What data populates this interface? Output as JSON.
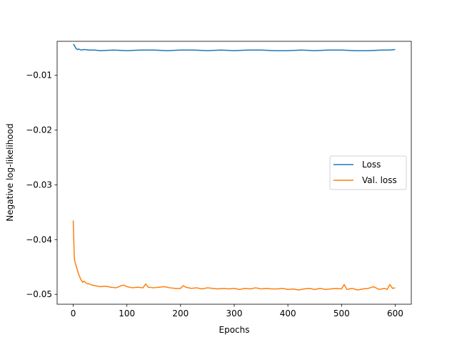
{
  "chart_data": {
    "type": "line",
    "title": "",
    "xlabel": "Epochs",
    "ylabel": "Negative log-likelihood",
    "xlim": [
      -30,
      630
    ],
    "ylim": [
      -0.0518,
      -0.0038
    ],
    "xticks": [
      0,
      100,
      200,
      300,
      400,
      500,
      600
    ],
    "xtick_labels": [
      "0",
      "100",
      "200",
      "300",
      "400",
      "500",
      "600"
    ],
    "yticks": [
      -0.01,
      -0.02,
      -0.03,
      -0.04,
      -0.05
    ],
    "ytick_labels": [
      "−0.01",
      "−0.02",
      "−0.03",
      "−0.04",
      "−0.05"
    ],
    "grid": false,
    "legend": {
      "position": "center-right"
    },
    "series": [
      {
        "name": "Loss",
        "color": "#1f77b4",
        "x": [
          0,
          2,
          4,
          6,
          8,
          10,
          15,
          20,
          30,
          40,
          50,
          75,
          100,
          125,
          150,
          175,
          200,
          225,
          250,
          275,
          300,
          325,
          350,
          375,
          400,
          425,
          450,
          475,
          500,
          525,
          550,
          575,
          590,
          600
        ],
        "y": [
          -0.0043,
          -0.0045,
          -0.0049,
          -0.0052,
          -0.0053,
          -0.0052,
          -0.0054,
          -0.0053,
          -0.0054,
          -0.0054,
          -0.0055,
          -0.0054,
          -0.0055,
          -0.0054,
          -0.0054,
          -0.0055,
          -0.0054,
          -0.0054,
          -0.0055,
          -0.0054,
          -0.0055,
          -0.0054,
          -0.0054,
          -0.0055,
          -0.0055,
          -0.0054,
          -0.0055,
          -0.0054,
          -0.0054,
          -0.0055,
          -0.0055,
          -0.0054,
          -0.0054,
          -0.0053
        ]
      },
      {
        "name": "Val. loss",
        "color": "#ff7f0e",
        "x": [
          0,
          1,
          2,
          3,
          5,
          7,
          10,
          13,
          15,
          18,
          20,
          25,
          30,
          35,
          40,
          50,
          60,
          70,
          80,
          90,
          95,
          100,
          110,
          120,
          130,
          135,
          140,
          150,
          160,
          170,
          180,
          190,
          200,
          205,
          210,
          220,
          230,
          240,
          250,
          260,
          270,
          280,
          290,
          300,
          310,
          320,
          330,
          340,
          350,
          360,
          370,
          380,
          390,
          400,
          410,
          420,
          430,
          440,
          450,
          460,
          470,
          480,
          490,
          500,
          505,
          510,
          520,
          530,
          540,
          550,
          560,
          570,
          580,
          585,
          590,
          595,
          600
        ],
        "y": [
          -0.0365,
          -0.04,
          -0.0432,
          -0.044,
          -0.0447,
          -0.0453,
          -0.0463,
          -0.047,
          -0.0474,
          -0.0478,
          -0.0476,
          -0.048,
          -0.0481,
          -0.0483,
          -0.0484,
          -0.0486,
          -0.0485,
          -0.0487,
          -0.0488,
          -0.0484,
          -0.0483,
          -0.0486,
          -0.0488,
          -0.0487,
          -0.0488,
          -0.0481,
          -0.0487,
          -0.0488,
          -0.0487,
          -0.0486,
          -0.0488,
          -0.0489,
          -0.0489,
          -0.0484,
          -0.0487,
          -0.0489,
          -0.0488,
          -0.049,
          -0.0488,
          -0.0489,
          -0.049,
          -0.0489,
          -0.049,
          -0.0489,
          -0.0491,
          -0.0489,
          -0.049,
          -0.0488,
          -0.049,
          -0.0489,
          -0.049,
          -0.049,
          -0.0489,
          -0.0491,
          -0.049,
          -0.0492,
          -0.049,
          -0.0489,
          -0.0491,
          -0.0489,
          -0.0491,
          -0.049,
          -0.0489,
          -0.049,
          -0.0482,
          -0.0491,
          -0.0489,
          -0.0492,
          -0.049,
          -0.0489,
          -0.0486,
          -0.0491,
          -0.0489,
          -0.0491,
          -0.0482,
          -0.0489,
          -0.0488
        ]
      }
    ]
  }
}
